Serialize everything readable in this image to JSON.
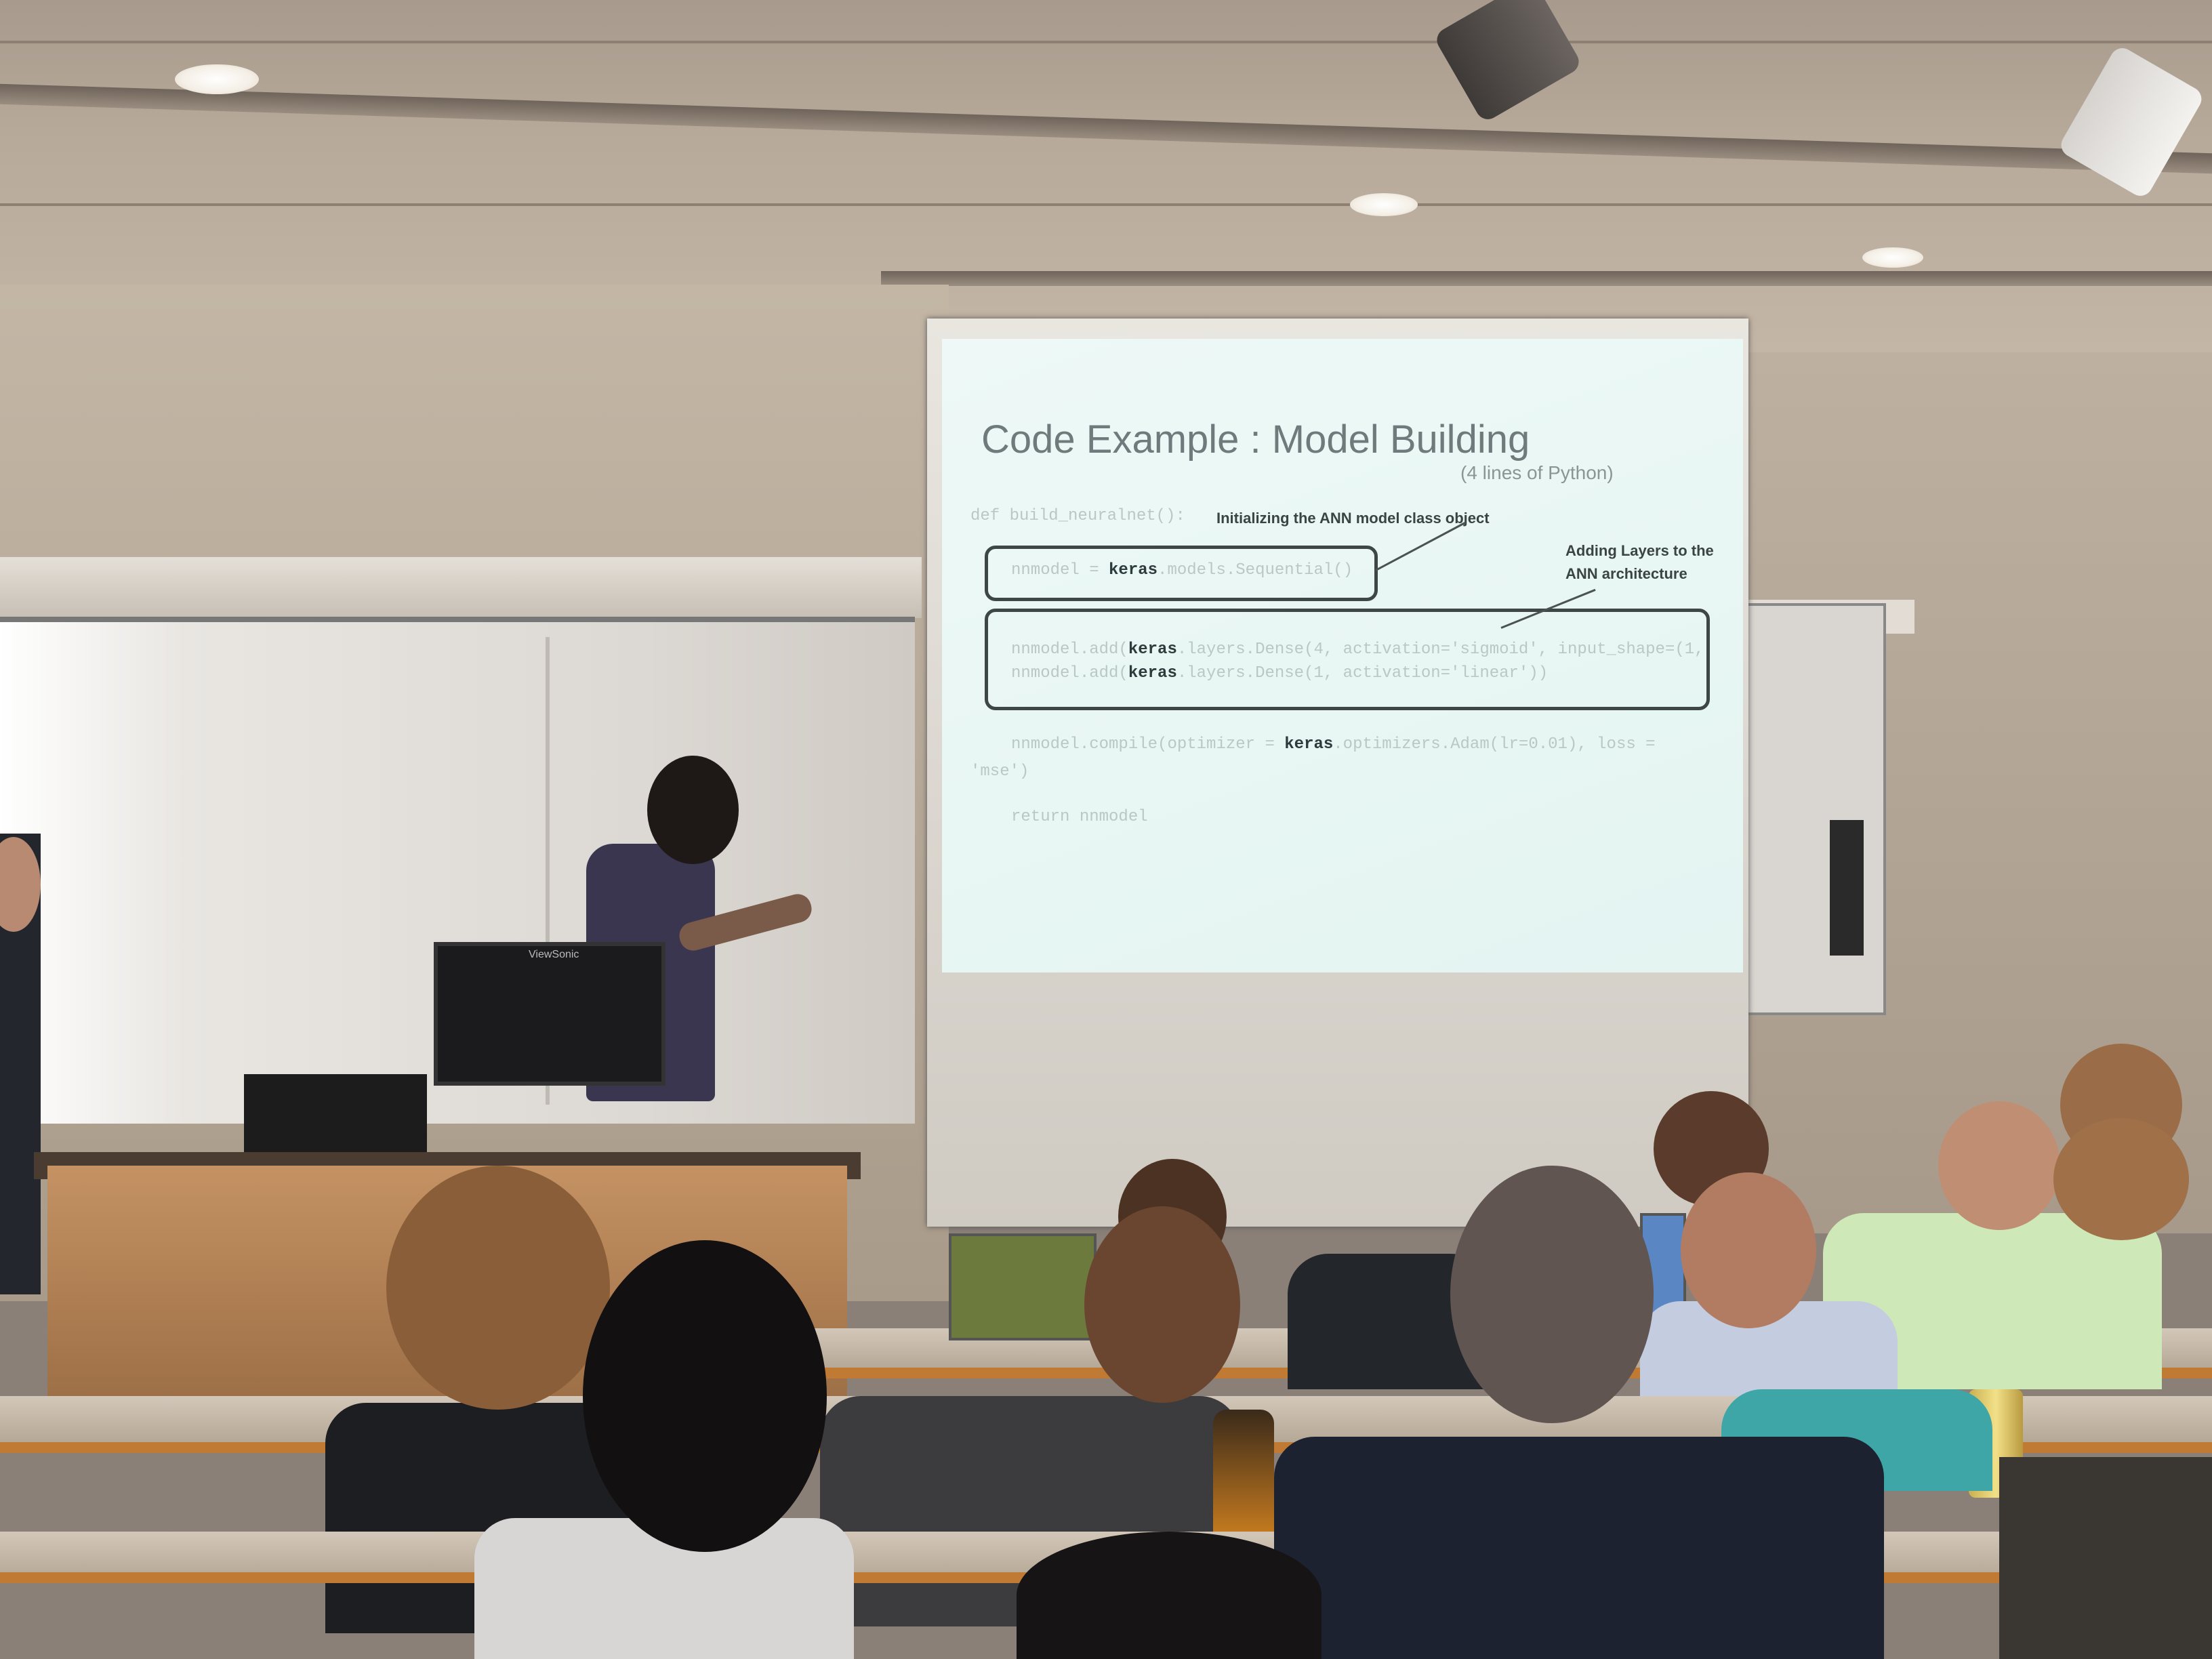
{
  "slide": {
    "title": "Code Example : Model Building",
    "subtitle": "(4 lines of Python)",
    "annotation_1": "Initializing the ANN model class object",
    "annotation_2_line1": "Adding Layers to the",
    "annotation_2_line2": "ANN architecture",
    "code_def": "def build_neuralnet():",
    "code_line1_pre": "nnmodel = ",
    "code_line1_kw": "keras",
    "code_line1_post": ".models.Sequential()",
    "code_line2_pre": "nnmodel.add(",
    "code_line2_kw": "keras",
    "code_line2_post": ".layers.Dense(4, activation='sigmoid', input_shape=(1,",
    "code_line3_pre": "nnmodel.add(",
    "code_line3_kw": "keras",
    "code_line3_post": ".layers.Dense(1, activation='linear'))",
    "code_line4_pre": "nnmodel.compile(optimizer = ",
    "code_line4_kw": "keras",
    "code_line4_post": ".optimizers.Adam(lr=0.01), loss =",
    "code_line4_cont": "'mse')",
    "code_return": "return nnmodel"
  },
  "monitor_brand": "ViewSonic",
  "colors": {
    "slide_bg": "#e8f6f3",
    "slide_title": "#6e7a7b",
    "podium_wood": "#b9875a",
    "desk_edge": "#c07a33"
  }
}
